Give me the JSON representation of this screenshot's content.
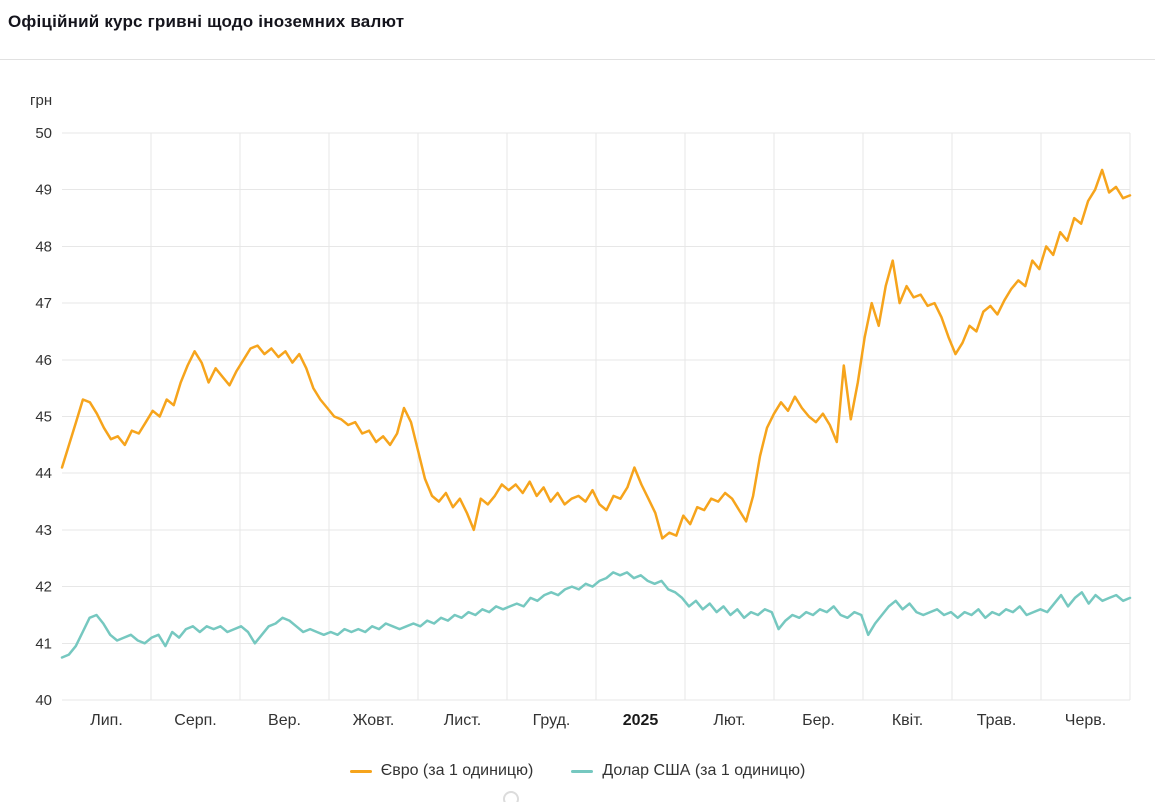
{
  "page": {
    "title": "Офіційний курс гривні щодо іноземних валют"
  },
  "chart_data": {
    "type": "line",
    "title": "Офіційний курс гривні щодо іноземних валют",
    "y_axis_label": "грн",
    "ylim": [
      40,
      50
    ],
    "y_ticks": [
      50,
      49,
      48,
      47,
      46,
      45,
      44,
      43,
      42,
      41,
      40
    ],
    "x_labels": [
      "Лип.",
      "Серп.",
      "Вер.",
      "Жовт.",
      "Лист.",
      "Груд.",
      "2025",
      "Лют.",
      "Бер.",
      "Квіт.",
      "Трав.",
      "Черв."
    ],
    "x_label_bold_index": 6,
    "grid": true,
    "legend_position": "bottom",
    "series": [
      {
        "name": "Євро (за 1 одиницю)",
        "color": "#F6A41C",
        "values": [
          44.1,
          44.5,
          44.9,
          45.3,
          45.25,
          45.05,
          44.8,
          44.6,
          44.65,
          44.5,
          44.75,
          44.7,
          44.9,
          45.1,
          45.0,
          45.3,
          45.2,
          45.6,
          45.9,
          46.15,
          45.95,
          45.6,
          45.85,
          45.7,
          45.55,
          45.8,
          46.0,
          46.2,
          46.25,
          46.1,
          46.2,
          46.05,
          46.15,
          45.95,
          46.1,
          45.85,
          45.5,
          45.3,
          45.15,
          45.0,
          44.95,
          44.85,
          44.9,
          44.7,
          44.75,
          44.55,
          44.65,
          44.5,
          44.7,
          45.15,
          44.9,
          44.4,
          43.9,
          43.6,
          43.5,
          43.65,
          43.4,
          43.55,
          43.3,
          43.0,
          43.55,
          43.45,
          43.6,
          43.8,
          43.7,
          43.8,
          43.65,
          43.85,
          43.6,
          43.75,
          43.5,
          43.65,
          43.45,
          43.55,
          43.6,
          43.5,
          43.7,
          43.45,
          43.35,
          43.6,
          43.55,
          43.75,
          44.1,
          43.8,
          43.55,
          43.3,
          42.85,
          42.95,
          42.9,
          43.25,
          43.1,
          43.4,
          43.35,
          43.55,
          43.5,
          43.65,
          43.55,
          43.35,
          43.15,
          43.6,
          44.3,
          44.8,
          45.05,
          45.25,
          45.1,
          45.35,
          45.15,
          45.0,
          44.9,
          45.05,
          44.85,
          44.55,
          45.9,
          44.95,
          45.6,
          46.4,
          47.0,
          46.6,
          47.3,
          47.75,
          47.0,
          47.3,
          47.1,
          47.15,
          46.95,
          47.0,
          46.75,
          46.4,
          46.1,
          46.3,
          46.6,
          46.5,
          46.85,
          46.95,
          46.8,
          47.05,
          47.25,
          47.4,
          47.3,
          47.75,
          47.6,
          48.0,
          47.85,
          48.25,
          48.1,
          48.5,
          48.4,
          48.8,
          49.0,
          49.35,
          48.95,
          49.05,
          48.85,
          48.9
        ]
      },
      {
        "name": "Долар США (за 1 одиницю)",
        "color": "#76C8C0",
        "values": [
          40.75,
          40.8,
          40.95,
          41.2,
          41.45,
          41.5,
          41.35,
          41.15,
          41.05,
          41.1,
          41.15,
          41.05,
          41.0,
          41.1,
          41.15,
          40.95,
          41.2,
          41.1,
          41.25,
          41.3,
          41.2,
          41.3,
          41.25,
          41.3,
          41.2,
          41.25,
          41.3,
          41.2,
          41.0,
          41.15,
          41.3,
          41.35,
          41.45,
          41.4,
          41.3,
          41.2,
          41.25,
          41.2,
          41.15,
          41.2,
          41.15,
          41.25,
          41.2,
          41.25,
          41.2,
          41.3,
          41.25,
          41.35,
          41.3,
          41.25,
          41.3,
          41.35,
          41.3,
          41.4,
          41.35,
          41.45,
          41.4,
          41.5,
          41.45,
          41.55,
          41.5,
          41.6,
          41.55,
          41.65,
          41.6,
          41.65,
          41.7,
          41.65,
          41.8,
          41.75,
          41.85,
          41.9,
          41.85,
          41.95,
          42.0,
          41.95,
          42.05,
          42.0,
          42.1,
          42.15,
          42.25,
          42.2,
          42.25,
          42.15,
          42.2,
          42.1,
          42.05,
          42.1,
          41.95,
          41.9,
          41.8,
          41.65,
          41.75,
          41.6,
          41.7,
          41.55,
          41.65,
          41.5,
          41.6,
          41.45,
          41.55,
          41.5,
          41.6,
          41.55,
          41.25,
          41.4,
          41.5,
          41.45,
          41.55,
          41.5,
          41.6,
          41.55,
          41.65,
          41.5,
          41.45,
          41.55,
          41.5,
          41.15,
          41.35,
          41.5,
          41.65,
          41.75,
          41.6,
          41.7,
          41.55,
          41.5,
          41.55,
          41.6,
          41.5,
          41.55,
          41.45,
          41.55,
          41.5,
          41.6,
          41.45,
          41.55,
          41.5,
          41.6,
          41.55,
          41.65,
          41.5,
          41.55,
          41.6,
          41.55,
          41.7,
          41.85,
          41.65,
          41.8,
          41.9,
          41.7,
          41.85,
          41.75,
          41.8,
          41.85,
          41.75,
          41.8
        ]
      }
    ]
  }
}
